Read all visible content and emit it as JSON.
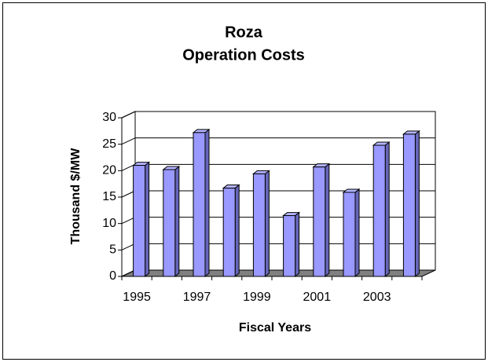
{
  "chart_data": {
    "type": "bar3d",
    "title": [
      "Roza",
      "Operation Costs"
    ],
    "x_label": "Fiscal Years",
    "y_label": "Thousand $/MW",
    "categories": [
      "1995",
      null,
      "1997",
      null,
      "1999",
      null,
      "2001",
      null,
      "2003",
      null
    ],
    "values": [
      21,
      20.2,
      27.2,
      16.7,
      19.4,
      11.5,
      20.7,
      15.9,
      24.8,
      26.9
    ],
    "color": "#9999ff",
    "ylim": [
      0,
      30
    ],
    "yticks": [
      0,
      5,
      10,
      15,
      20,
      25,
      30
    ],
    "grid": true
  }
}
